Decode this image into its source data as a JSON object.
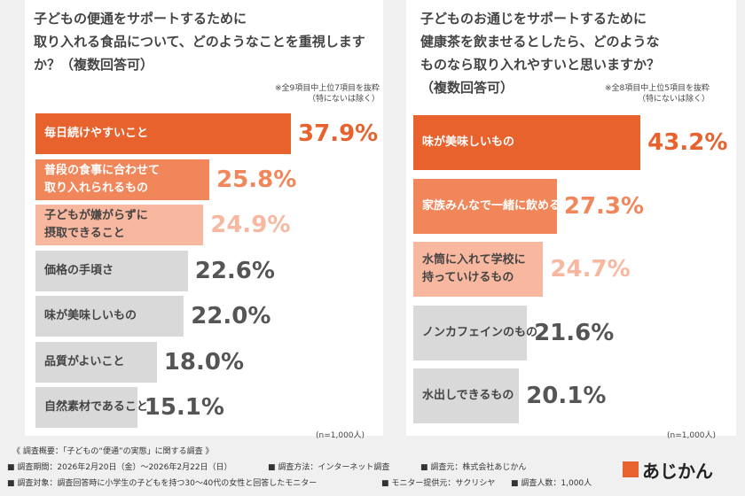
{
  "chart_data": [
    {
      "type": "bar",
      "orientation": "horizontal",
      "title": "子どもの便通をサポートするために\n取り入れる食品について、どのようなことを重視しますか？（複数回答可）",
      "note": "※全9項目中上位7項目を抜粋\n（特にないは除く）",
      "sample": "(n=1,000人)",
      "categories": [
        "毎日続けやすいこと",
        "普段の食事に合わせて\n取り入れられるもの",
        "子どもが嫌がらずに\n摂取できること",
        "価格の手頃さ",
        "味が美味しいもの",
        "品質がよいこと",
        "自然素材であること"
      ],
      "values": [
        37.9,
        25.8,
        24.9,
        22.6,
        22.0,
        18.0,
        15.1
      ],
      "value_labels": [
        "37.9%",
        "25.8%",
        "24.9%",
        "22.6%",
        "22.0%",
        "18.0%",
        "15.1%"
      ],
      "colors": [
        "#e8622e",
        "#f0865a",
        "#f8b8a0",
        "#d9d9d9",
        "#d9d9d9",
        "#d9d9d9",
        "#d9d9d9"
      ],
      "label_colors": [
        "#e8622e",
        "#f0865a",
        "#f8b8a0",
        "#555555",
        "#555555",
        "#555555",
        "#555555"
      ]
    },
    {
      "type": "bar",
      "orientation": "horizontal",
      "title": "子どものお通じをサポートするために\n健康茶を飲ませるとしたら、どのような\nものなら取り入れやすいと思いますか？\n（複数回答可）",
      "note": "※全8項目中上位5項目を抜粋\n（特にないは除く）",
      "sample": "(n=1,000人)",
      "categories": [
        "味が美味しいもの",
        "家族みんなで一緒に飲めるもの",
        "水筒に入れて学校に\n持っていけるもの",
        "ノンカフェインのもの",
        "水出しできるもの"
      ],
      "values": [
        43.2,
        27.3,
        24.7,
        21.6,
        20.1
      ],
      "value_labels": [
        "43.2%",
        "27.3%",
        "24.7%",
        "21.6%",
        "20.1%"
      ],
      "colors": [
        "#e8622e",
        "#f0865a",
        "#f8b8a0",
        "#d9d9d9",
        "#d9d9d9"
      ],
      "label_colors": [
        "#e8622e",
        "#f0865a",
        "#f8b8a0",
        "#555555",
        "#555555"
      ]
    }
  ],
  "footer": {
    "heading": "《 調査概要：「子どもの“便通”の実態」に関する調査 》",
    "items": [
      "調査期間：2026年2月20日（金）〜2026年2月22日（日）",
      "調査方法：インターネット調査",
      "調査元：株式会社あじかん",
      "調査対象：調査回答時に小学生の子どもを持つ30〜40代の女性と回答したモニター",
      "モニター提供元：サクリシヤ",
      "調査人数：1,000人"
    ],
    "logo": "あじかん"
  }
}
